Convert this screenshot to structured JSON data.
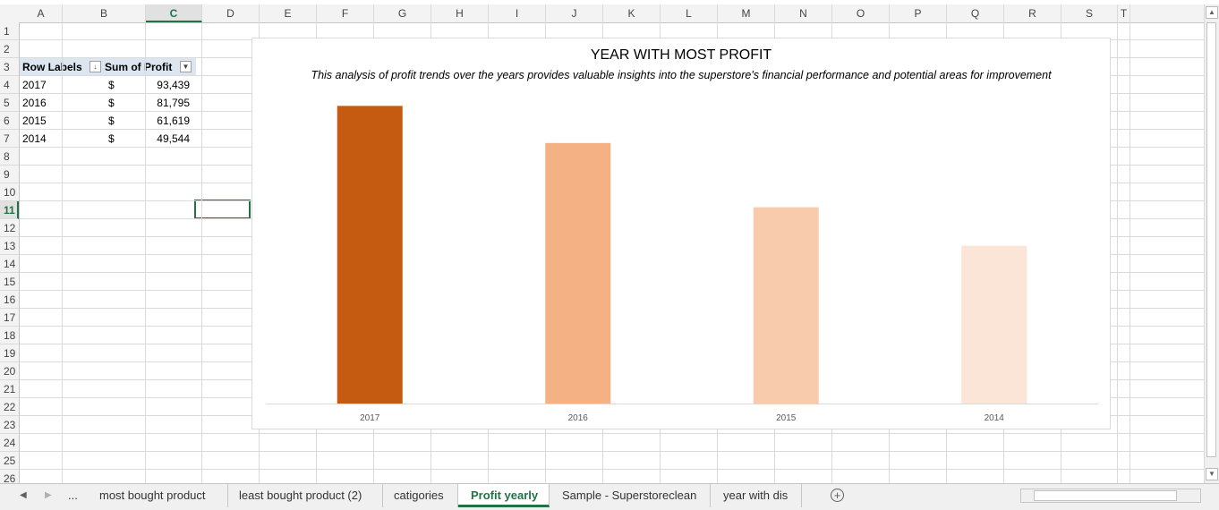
{
  "columns": [
    "A",
    "B",
    "C",
    "D",
    "E",
    "F",
    "G",
    "H",
    "I",
    "J",
    "K",
    "L",
    "M",
    "N",
    "O",
    "P",
    "Q",
    "R",
    "S",
    "T"
  ],
  "active_column": "C",
  "rows": [
    "1",
    "2",
    "3",
    "4",
    "5",
    "6",
    "7",
    "8",
    "9",
    "10",
    "11",
    "12",
    "13",
    "14",
    "15",
    "16",
    "17",
    "18",
    "19",
    "20",
    "21",
    "22",
    "23",
    "24",
    "25",
    "26"
  ],
  "active_row": "11",
  "pivot": {
    "header_row_labels": "Row Labels",
    "header_sum": "Sum of Profit",
    "currency": "$",
    "rows": [
      {
        "label": "2017",
        "value": "93,439"
      },
      {
        "label": "2016",
        "value": "81,795"
      },
      {
        "label": "2015",
        "value": "61,619"
      },
      {
        "label": "2014",
        "value": "49,544"
      }
    ]
  },
  "chart": {
    "title": "YEAR WITH MOST PROFIT",
    "subtitle": "This analysis of profit trends over the years provides valuable insights into the superstore's financial performance and potential areas for improvement"
  },
  "chart_data": {
    "type": "bar",
    "title": "YEAR WITH MOST PROFIT",
    "categories": [
      "2017",
      "2016",
      "2015",
      "2014"
    ],
    "values": [
      93439,
      81795,
      61619,
      49544
    ],
    "colors": [
      "#c55a11",
      "#f4b183",
      "#f8cbad",
      "#fbe5d6"
    ],
    "ylim": [
      0,
      100000
    ],
    "grid": false,
    "legend": "none"
  },
  "tabs": {
    "ellipsis": "...",
    "items": [
      {
        "label": "most bought product",
        "active": false
      },
      {
        "label": "least bought product (2)",
        "active": false
      },
      {
        "label": "catigories",
        "active": false
      },
      {
        "label": "Profit yearly",
        "active": true
      },
      {
        "label": "Sample - Superstoreclean",
        "active": false
      },
      {
        "label": "year with dis",
        "active": false
      }
    ],
    "add_label": "+"
  },
  "icons": {
    "scroll_up": "scroll-up-arrow-icon",
    "scroll_down": "scroll-down-arrow-icon",
    "tab_prev": "tab-prev-arrow-icon",
    "tab_next": "tab-next-arrow-icon",
    "sort": "sort-descending-icon",
    "filter": "filter-dropdown-icon"
  },
  "accent": "#217346"
}
